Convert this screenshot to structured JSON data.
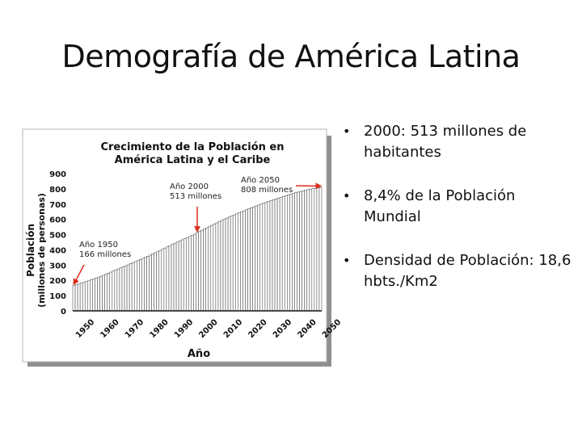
{
  "slide": {
    "title": "Demografía de América Latina",
    "bullets": [
      "2000: 513 millones de habitantes",
      "8,4% de la Población Mundial",
      "Densidad de Población: 18,6 hbts./Km2"
    ]
  },
  "chart_data": {
    "type": "bar",
    "title_line1": "Crecimiento de la Población en",
    "title_line2": "América Latina y el Caribe",
    "xlabel": "Año",
    "ylabel_line1": "Población",
    "ylabel_line2": "(millones de personas)",
    "ylim": [
      0,
      900
    ],
    "yticks": [
      0,
      100,
      200,
      300,
      400,
      500,
      600,
      700,
      800,
      900
    ],
    "xticks": [
      "1950",
      "1960",
      "1970",
      "1980",
      "1990",
      "2000",
      "2010",
      "2020",
      "2030",
      "2040",
      "2050"
    ],
    "years": [
      1950,
      1951,
      1952,
      1953,
      1954,
      1955,
      1956,
      1957,
      1958,
      1959,
      1960,
      1961,
      1962,
      1963,
      1964,
      1965,
      1966,
      1967,
      1968,
      1969,
      1970,
      1971,
      1972,
      1973,
      1974,
      1975,
      1976,
      1977,
      1978,
      1979,
      1980,
      1981,
      1982,
      1983,
      1984,
      1985,
      1986,
      1987,
      1988,
      1989,
      1990,
      1991,
      1992,
      1993,
      1994,
      1995,
      1996,
      1997,
      1998,
      1999,
      2000,
      2001,
      2002,
      2003,
      2004,
      2005,
      2006,
      2007,
      2008,
      2009,
      2010,
      2011,
      2012,
      2013,
      2014,
      2015,
      2016,
      2017,
      2018,
      2019,
      2020,
      2021,
      2022,
      2023,
      2024,
      2025,
      2026,
      2027,
      2028,
      2029,
      2030,
      2031,
      2032,
      2033,
      2034,
      2035,
      2036,
      2037,
      2038,
      2039,
      2040,
      2041,
      2042,
      2043,
      2044,
      2045,
      2046,
      2047,
      2048,
      2049,
      2050
    ],
    "values": [
      166,
      171,
      176,
      181,
      186,
      192,
      197,
      203,
      209,
      215,
      221,
      227,
      233,
      240,
      247,
      254,
      261,
      268,
      275,
      282,
      288,
      295,
      302,
      309,
      316,
      323,
      330,
      337,
      344,
      351,
      358,
      366,
      373,
      381,
      388,
      396,
      404,
      412,
      420,
      428,
      436,
      443,
      451,
      458,
      466,
      473,
      480,
      488,
      495,
      503,
      513,
      521,
      529,
      537,
      545,
      553,
      561,
      569,
      577,
      585,
      593,
      600,
      608,
      615,
      622,
      629,
      636,
      643,
      650,
      656,
      663,
      669,
      676,
      682,
      688,
      694,
      700,
      706,
      712,
      718,
      723,
      729,
      734,
      740,
      745,
      750,
      755,
      760,
      765,
      770,
      775,
      779,
      783,
      787,
      791,
      795,
      798,
      801,
      804,
      806,
      808
    ],
    "annotations": [
      {
        "year": 1950,
        "value": 166,
        "line1": "Año 1950",
        "line2": "166 millones"
      },
      {
        "year": 2000,
        "value": 513,
        "line1": "Año 2000",
        "line2": "513 millones"
      },
      {
        "year": 2050,
        "value": 808,
        "line1": "Año 2050",
        "line2": "808 millones"
      }
    ],
    "colors": {
      "bar": "#ffffff",
      "bar_stroke": "#555555",
      "arrow": "#d9301c",
      "axis": "#111111",
      "panel_bg": "#ffffff",
      "frame": "#9a9a9a"
    }
  }
}
